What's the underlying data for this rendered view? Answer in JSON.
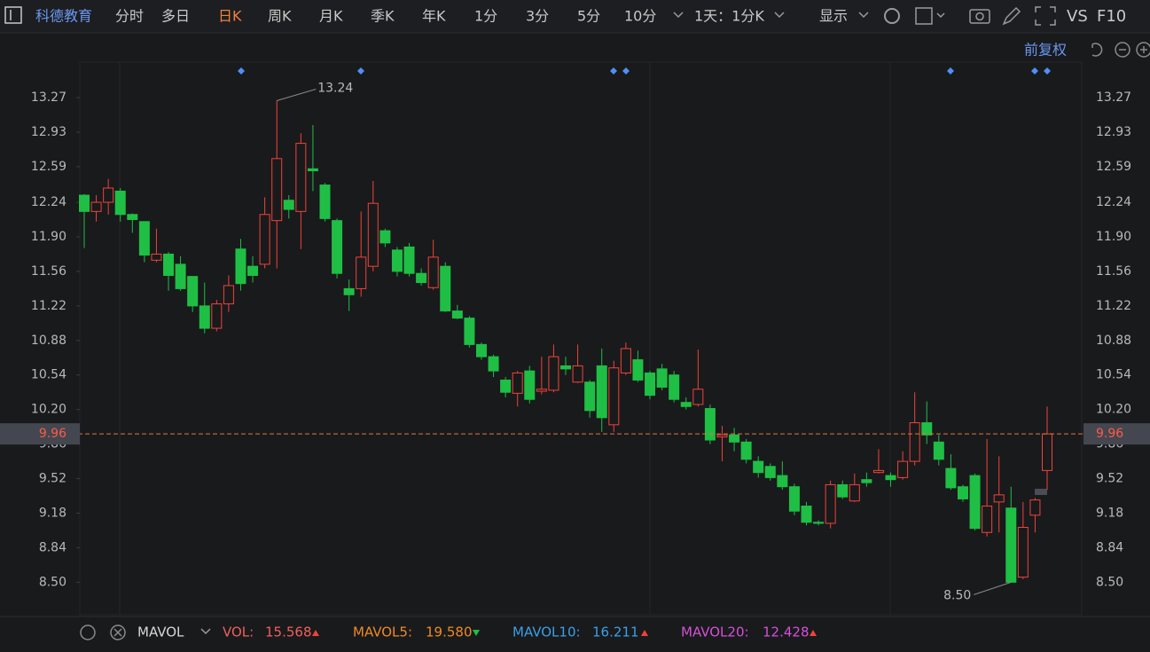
{
  "toolbar": {
    "stock_name": "科德教育",
    "periods": [
      "分时",
      "多日",
      "日K",
      "周K",
      "月K",
      "季K",
      "年K",
      "1分",
      "3分",
      "5分",
      "10分"
    ],
    "active_period": "日K",
    "interval": "1天：1分K",
    "display": "显示",
    "vs": "VS",
    "f10": "F10"
  },
  "adjust": "前复权",
  "indicator_panel": {
    "name": "MAVOL",
    "items": [
      {
        "name": "VOL:",
        "value": "15.568",
        "color": "#f0605a"
      },
      {
        "name": "MAVOL5:",
        "value": "19.580",
        "color": "#f08a24"
      },
      {
        "name": "MAVOL10:",
        "value": "16.211",
        "color": "#3aa0e8"
      },
      {
        "name": "MAVOL20:",
        "value": "12.428",
        "color": "#d450d8"
      }
    ]
  },
  "chart_data": {
    "type": "candlestick",
    "open": [
      12.31,
      12.15,
      12.24,
      12.35,
      12.12,
      12.05,
      11.67,
      11.73,
      11.63,
      11.51,
      11.22,
      11.0,
      11.24,
      11.78,
      11.61,
      11.63,
      12.06,
      12.26,
      12.15,
      12.57,
      12.41,
      12.06,
      11.39,
      11.39,
      11.61,
      11.96,
      11.77,
      11.8,
      11.54,
      11.4,
      11.61,
      11.17,
      11.1,
      10.84,
      10.72,
      10.49,
      10.36,
      10.58,
      10.38,
      10.39,
      10.63,
      10.47,
      10.47,
      10.63,
      10.05,
      10.56,
      10.69,
      10.56,
      10.6,
      10.54,
      10.27,
      10.25,
      10.21,
      9.93,
      9.95,
      9.88,
      9.69,
      9.64,
      9.55,
      9.44,
      9.25,
      9.09,
      9.08,
      9.46,
      9.3,
      9.51,
      9.58,
      9.55,
      9.53,
      9.69,
      10.07,
      9.88,
      9.62,
      9.44,
      9.55,
      8.99,
      9.29,
      9.23,
      8.55,
      9.16,
      9.6
    ],
    "high": [
      12.32,
      12.31,
      12.47,
      12.38,
      12.13,
      12.05,
      11.98,
      11.75,
      11.71,
      11.51,
      11.45,
      11.28,
      11.52,
      11.88,
      11.71,
      12.29,
      13.24,
      12.31,
      12.92,
      13.0,
      12.43,
      12.08,
      11.48,
      12.15,
      12.45,
      11.98,
      11.8,
      11.84,
      11.59,
      11.87,
      11.65,
      11.23,
      11.12,
      10.86,
      10.74,
      10.52,
      10.58,
      10.63,
      10.72,
      10.84,
      10.72,
      10.84,
      10.49,
      10.8,
      10.68,
      10.86,
      10.78,
      10.58,
      10.65,
      10.58,
      10.32,
      10.79,
      10.25,
      10.04,
      10.02,
      9.91,
      9.74,
      9.67,
      9.69,
      9.47,
      9.29,
      9.11,
      9.5,
      9.5,
      9.57,
      9.58,
      9.81,
      9.58,
      9.79,
      10.37,
      10.28,
      9.95,
      9.76,
      9.46,
      9.57,
      9.91,
      9.74,
      9.44,
      9.29,
      9.33,
      10.23
    ],
    "low": [
      11.79,
      12.05,
      12.12,
      12.05,
      11.94,
      11.65,
      11.65,
      11.37,
      11.37,
      11.16,
      10.95,
      10.97,
      11.16,
      11.37,
      11.45,
      11.59,
      11.59,
      12.08,
      11.78,
      12.35,
      12.05,
      11.49,
      11.17,
      11.31,
      11.56,
      11.8,
      11.51,
      11.51,
      11.42,
      11.38,
      11.16,
      11.09,
      10.81,
      10.69,
      10.52,
      10.32,
      10.23,
      10.26,
      10.35,
      10.37,
      10.54,
      10.46,
      10.12,
      9.98,
      9.98,
      10.54,
      10.47,
      10.3,
      10.39,
      10.27,
      10.2,
      10.23,
      9.86,
      9.69,
      9.79,
      9.67,
      9.53,
      9.5,
      9.41,
      9.16,
      9.06,
      9.06,
      9.03,
      9.32,
      9.29,
      9.44,
      9.57,
      9.44,
      9.51,
      9.65,
      9.86,
      9.65,
      9.41,
      9.29,
      9.01,
      8.95,
      8.99,
      8.5,
      8.53,
      8.99,
      9.41
    ],
    "close": [
      12.15,
      12.24,
      12.38,
      12.12,
      12.07,
      11.72,
      11.73,
      11.52,
      11.39,
      11.22,
      11.0,
      11.24,
      11.42,
      11.44,
      11.52,
      12.12,
      12.67,
      12.17,
      12.82,
      12.55,
      12.08,
      11.54,
      11.33,
      11.7,
      12.23,
      11.84,
      11.56,
      11.54,
      11.45,
      11.7,
      11.17,
      11.1,
      10.84,
      10.72,
      10.58,
      10.37,
      10.56,
      10.3,
      10.4,
      10.72,
      10.6,
      10.63,
      10.19,
      10.12,
      10.61,
      10.8,
      10.49,
      10.34,
      10.42,
      10.3,
      10.23,
      10.4,
      9.9,
      9.95,
      9.88,
      9.71,
      9.58,
      9.53,
      9.44,
      9.2,
      9.09,
      9.08,
      9.46,
      9.34,
      9.46,
      9.48,
      9.6,
      9.51,
      9.69,
      10.07,
      9.95,
      9.71,
      9.43,
      9.32,
      9.03,
      9.25,
      9.36,
      8.5,
      9.04,
      9.31,
      9.96
    ],
    "up_color": "#f0433a",
    "down_color": "#1fbf45",
    "ylim": [
      8.18,
      13.62
    ],
    "yticks": [
      13.27,
      12.93,
      12.59,
      12.24,
      {
        "value": 11.9,
        "label": "11.90"
      },
      11.56,
      11.22,
      10.88,
      10.54,
      {
        "value": 10.2,
        "label": "10.20"
      },
      9.86,
      9.52,
      9.18,
      8.84,
      {
        "value": 8.5,
        "label": "8.50"
      }
    ],
    "high_label": {
      "value": 13.24,
      "label": "13.24"
    },
    "low_label": {
      "value": 8.5,
      "label": "8.50"
    },
    "last_price": {
      "value": 9.96,
      "label": "9.96"
    }
  }
}
